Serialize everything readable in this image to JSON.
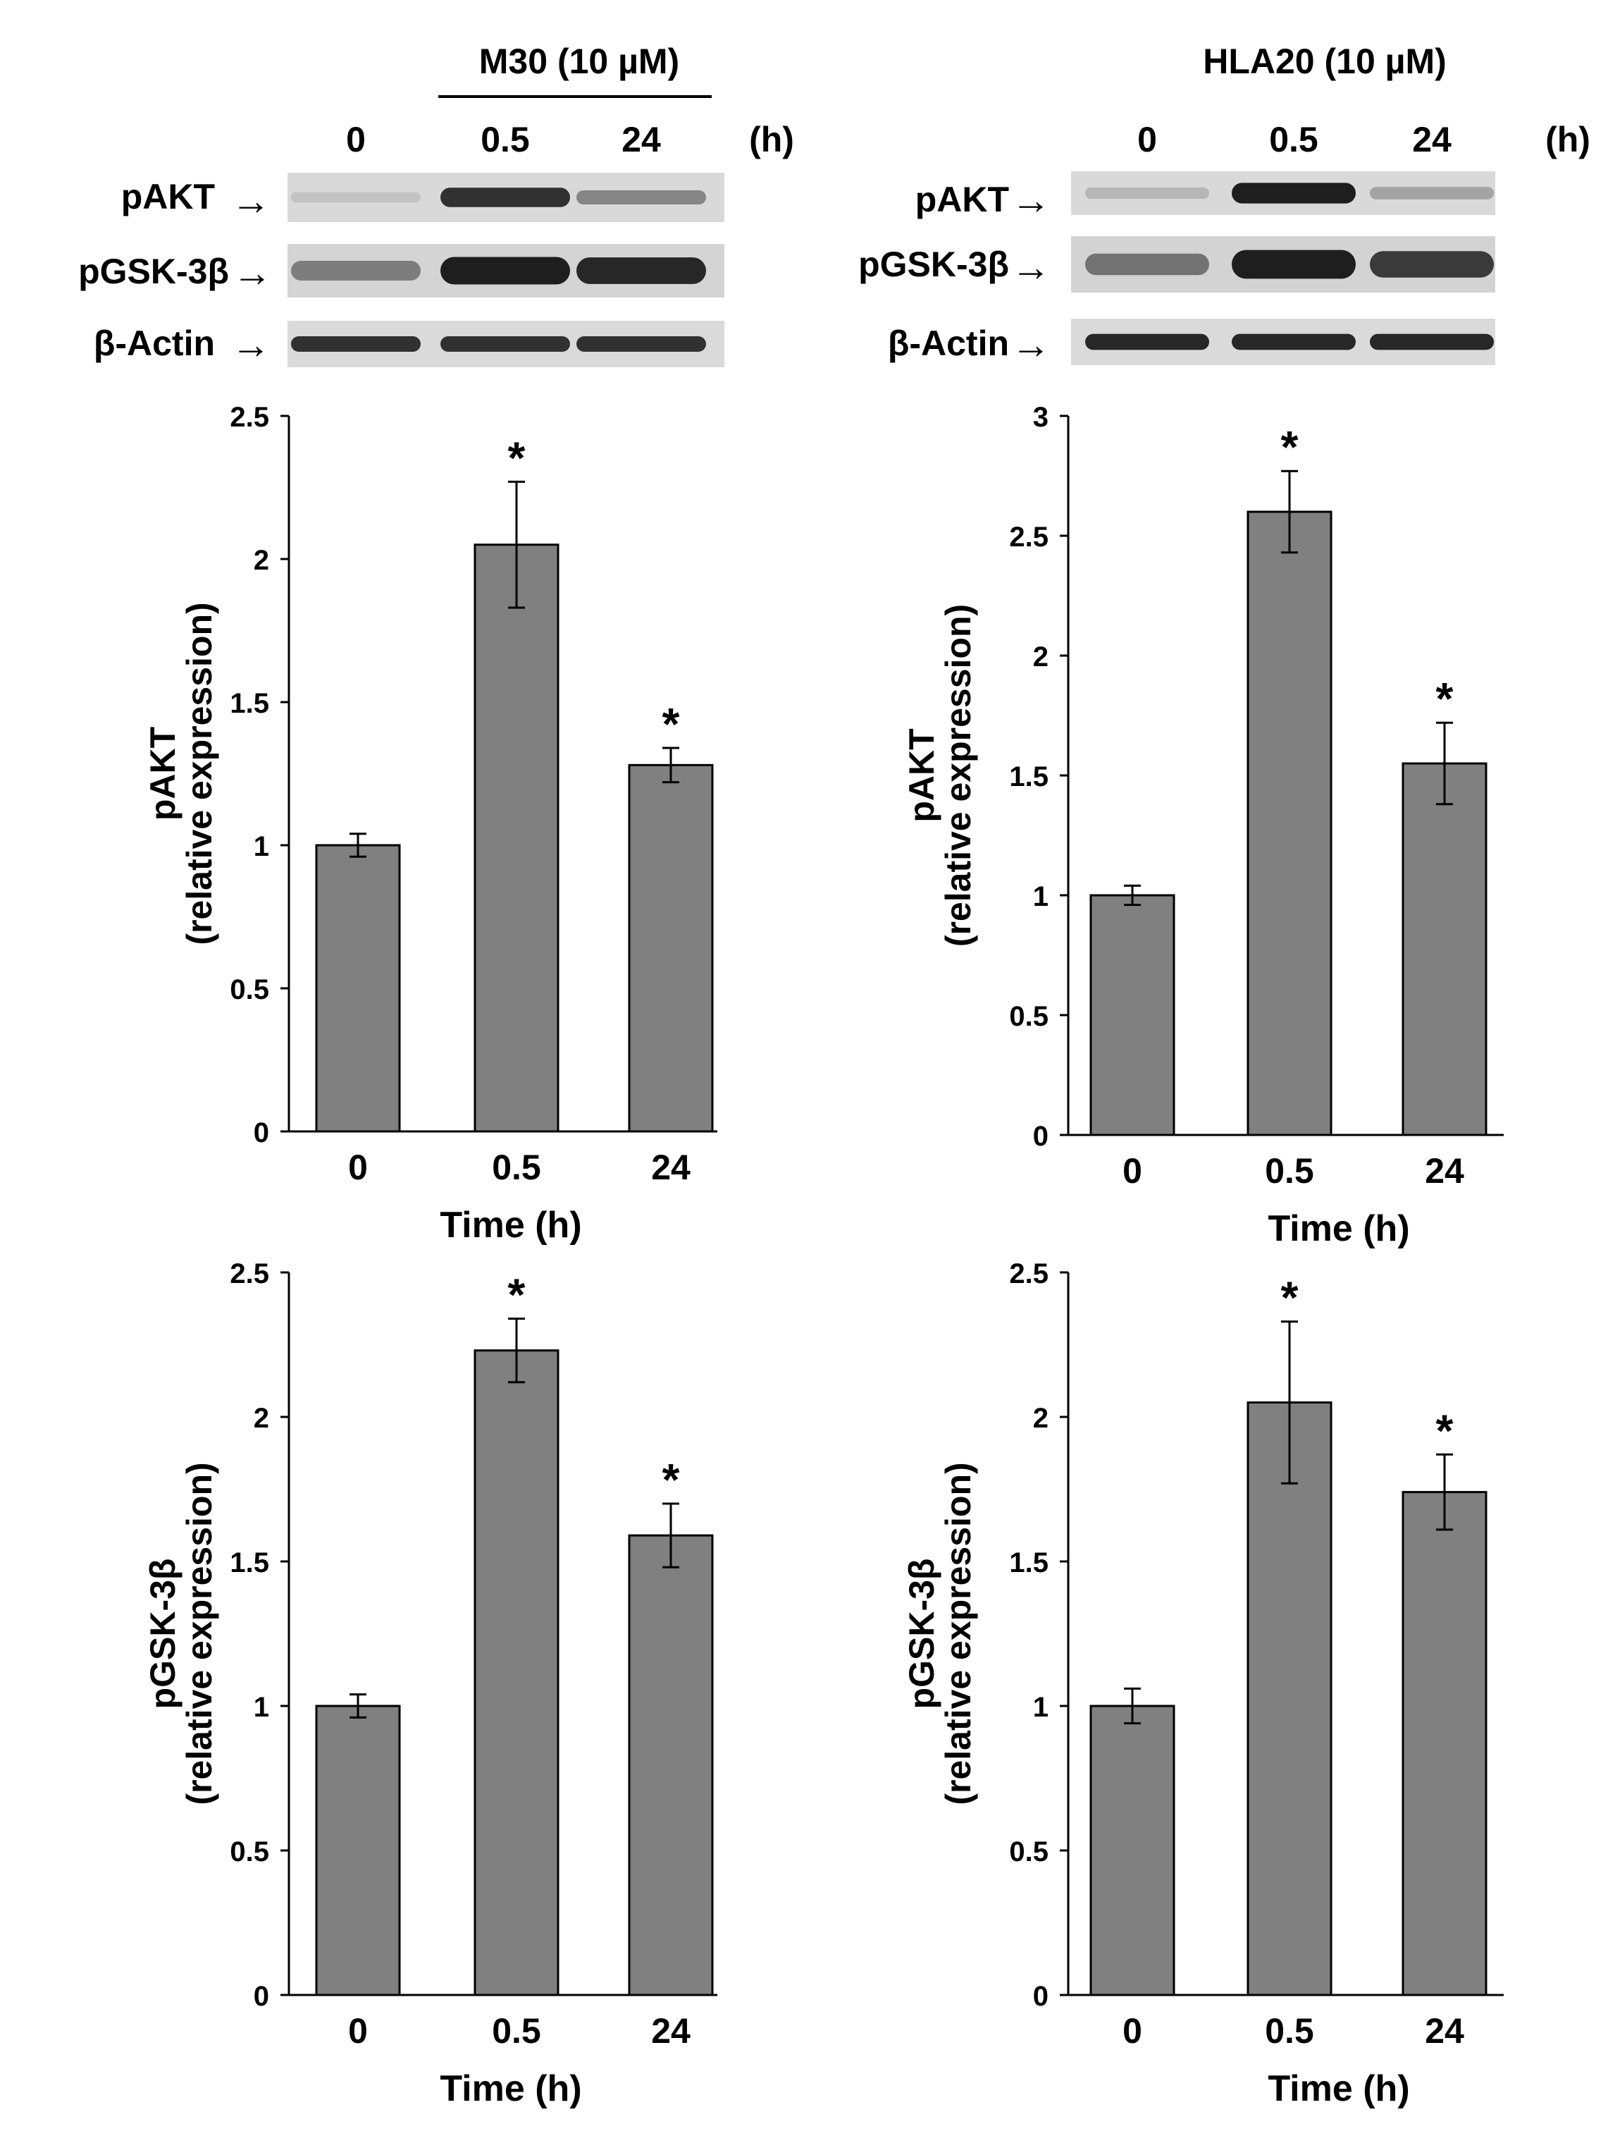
{
  "colors": {
    "bar": "#808080",
    "axis": "#000000",
    "blot_bg": "#d9d9d9",
    "band": "#1a1a1a"
  },
  "blots": [
    {
      "treatment": "M30 (10 µM)",
      "time_unit": "(h)",
      "times": [
        "0",
        "0.5",
        "24"
      ],
      "rows": [
        {
          "label": "pAKT",
          "arrow": "→",
          "intensity": [
            0.08,
            0.85,
            0.4
          ]
        },
        {
          "label": "pGSK-3β",
          "arrow": "→",
          "intensity": [
            0.45,
            0.95,
            0.9
          ]
        },
        {
          "label": "β-Actin",
          "arrow": "→",
          "intensity": [
            0.85,
            0.85,
            0.85
          ]
        }
      ]
    },
    {
      "treatment": "HLA20  (10 µM)",
      "time_unit": "(h)",
      "times": [
        "0",
        "0.5",
        "24"
      ],
      "rows": [
        {
          "label": "pAKT",
          "arrow": "→",
          "intensity": [
            0.15,
            0.95,
            0.25
          ]
        },
        {
          "label": "pGSK-3β",
          "arrow": "→",
          "intensity": [
            0.5,
            0.95,
            0.8
          ]
        },
        {
          "label": "β-Actin",
          "arrow": "→",
          "intensity": [
            0.9,
            0.9,
            0.9
          ]
        }
      ]
    }
  ],
  "chart_data": [
    {
      "type": "bar",
      "title": "",
      "categories": [
        "0",
        "0.5",
        "24"
      ],
      "values": [
        1.0,
        2.05,
        1.28
      ],
      "errors": [
        0.04,
        0.22,
        0.06
      ],
      "significance": [
        "",
        "*",
        "*"
      ],
      "ylim": [
        0,
        2.5
      ],
      "yticks": [
        "0",
        "0.5",
        "1",
        "1.5",
        "2",
        "2.5"
      ],
      "ylabel": "pAKT",
      "ylabel2": "(relative expression)",
      "xlabel": "Time  (h)",
      "grid": false
    },
    {
      "type": "bar",
      "title": "",
      "categories": [
        "0",
        "0.5",
        "24"
      ],
      "values": [
        1.0,
        2.6,
        1.55
      ],
      "errors": [
        0.04,
        0.17,
        0.17
      ],
      "significance": [
        "",
        "*",
        "*"
      ],
      "ylim": [
        0,
        3
      ],
      "yticks": [
        "0",
        "0.5",
        "1",
        "1.5",
        "2",
        "2.5",
        "3"
      ],
      "ylabel": "pAKT",
      "ylabel2": "(relative expression)",
      "xlabel": "Time  (h)",
      "grid": false
    },
    {
      "type": "bar",
      "title": "",
      "categories": [
        "0",
        "0.5",
        "24"
      ],
      "values": [
        1.0,
        2.23,
        1.59
      ],
      "errors": [
        0.04,
        0.11,
        0.11
      ],
      "significance": [
        "",
        "*",
        "*"
      ],
      "ylim": [
        0,
        2.5
      ],
      "yticks": [
        "0",
        "0.5",
        "1",
        "1.5",
        "2",
        "2.5"
      ],
      "ylabel": "pGSK-3β",
      "ylabel2": "(relative expression)",
      "xlabel": "Time  (h)",
      "grid": false
    },
    {
      "type": "bar",
      "title": "",
      "categories": [
        "0",
        "0.5",
        "24"
      ],
      "values": [
        1.0,
        2.05,
        1.74
      ],
      "errors": [
        0.06,
        0.28,
        0.13
      ],
      "significance": [
        "",
        "*",
        "*"
      ],
      "ylim": [
        0,
        2.5
      ],
      "yticks": [
        "0",
        "0.5",
        "1",
        "1.5",
        "2",
        "2.5"
      ],
      "ylabel": "pGSK-3β",
      "ylabel2": "(relative expression)",
      "xlabel": "Time  (h)",
      "grid": false
    }
  ]
}
